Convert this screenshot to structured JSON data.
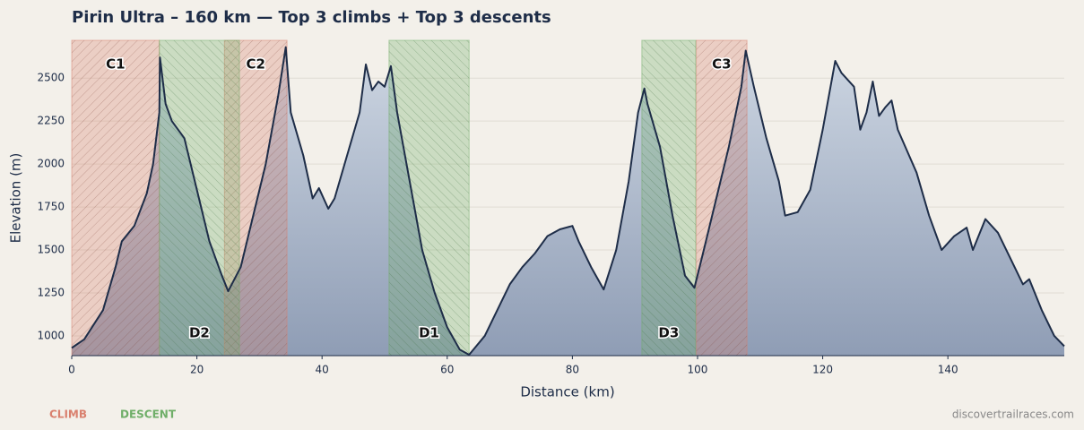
{
  "chart_data": {
    "type": "area",
    "title": "Pirin Ultra – 160 km — Top 3 climbs + Top 3 descents",
    "x_label": "Distance (km)",
    "y_label": "Elevation (m)",
    "x": [
      0,
      2,
      5,
      7,
      8,
      10,
      12,
      13,
      14,
      14.1,
      15,
      16,
      18,
      20,
      22,
      24,
      25,
      27,
      29,
      31,
      33,
      34.2,
      35,
      37,
      38.5,
      39.5,
      41,
      42,
      44,
      46,
      47,
      48,
      49,
      50,
      51,
      52,
      54,
      56,
      58,
      60,
      62,
      63.5,
      66,
      68,
      70,
      72,
      74,
      76,
      78,
      80,
      81,
      83,
      85,
      87,
      89,
      90.5,
      91.5,
      92,
      94,
      96,
      98,
      99.5,
      101,
      103,
      105,
      107,
      107.7,
      109,
      111,
      113,
      114,
      116,
      118,
      120,
      122,
      123,
      125,
      126,
      127,
      128,
      129,
      130,
      131,
      132,
      135,
      137,
      139,
      141,
      143,
      144,
      146,
      148,
      150,
      152,
      153,
      155,
      157,
      158.6
    ],
    "values": [
      930,
      980,
      1150,
      1400,
      1550,
      1640,
      1830,
      2000,
      2300,
      2620,
      2350,
      2250,
      2150,
      1850,
      1550,
      1350,
      1260,
      1400,
      1700,
      2000,
      2400,
      2680,
      2300,
      2050,
      1800,
      1860,
      1740,
      1800,
      2050,
      2300,
      2580,
      2430,
      2480,
      2450,
      2570,
      2300,
      1900,
      1500,
      1250,
      1050,
      920,
      890,
      1000,
      1150,
      1300,
      1400,
      1480,
      1580,
      1620,
      1640,
      1550,
      1400,
      1270,
      1500,
      1900,
      2300,
      2440,
      2350,
      2100,
      1700,
      1350,
      1280,
      1500,
      1800,
      2100,
      2450,
      2660,
      2450,
      2150,
      1900,
      1700,
      1720,
      1850,
      2200,
      2600,
      2530,
      2450,
      2200,
      2300,
      2480,
      2280,
      2330,
      2370,
      2200,
      1950,
      1700,
      1500,
      1580,
      1630,
      1500,
      1680,
      1600,
      1450,
      1300,
      1330,
      1150,
      1000,
      940
    ],
    "color": "#1e2d48",
    "xlim": [
      0,
      158.6
    ],
    "ylim": [
      885,
      2720
    ],
    "xticks": [
      0,
      20,
      40,
      60,
      80,
      100,
      120,
      140
    ],
    "yticks": [
      1000,
      1250,
      1500,
      1750,
      2000,
      2250,
      2500
    ],
    "grid": true,
    "climbs": {
      "label": "CLIMB",
      "color": "#d9806e",
      "regions": [
        {
          "label": "C1",
          "start": 0,
          "end": 14
        },
        {
          "label": "C2",
          "start": 24.4,
          "end": 34.4
        },
        {
          "label": "C3",
          "start": 99.8,
          "end": 107.9
        }
      ]
    },
    "descents": {
      "label": "DESCENT",
      "color": "#6fae68",
      "regions": [
        {
          "label": "D2",
          "start": 14,
          "end": 26.8
        },
        {
          "label": "D1",
          "start": 50.7,
          "end": 63.5
        },
        {
          "label": "D3",
          "start": 91.1,
          "end": 99.7
        }
      ]
    },
    "source": "discovertrailraces.com"
  }
}
